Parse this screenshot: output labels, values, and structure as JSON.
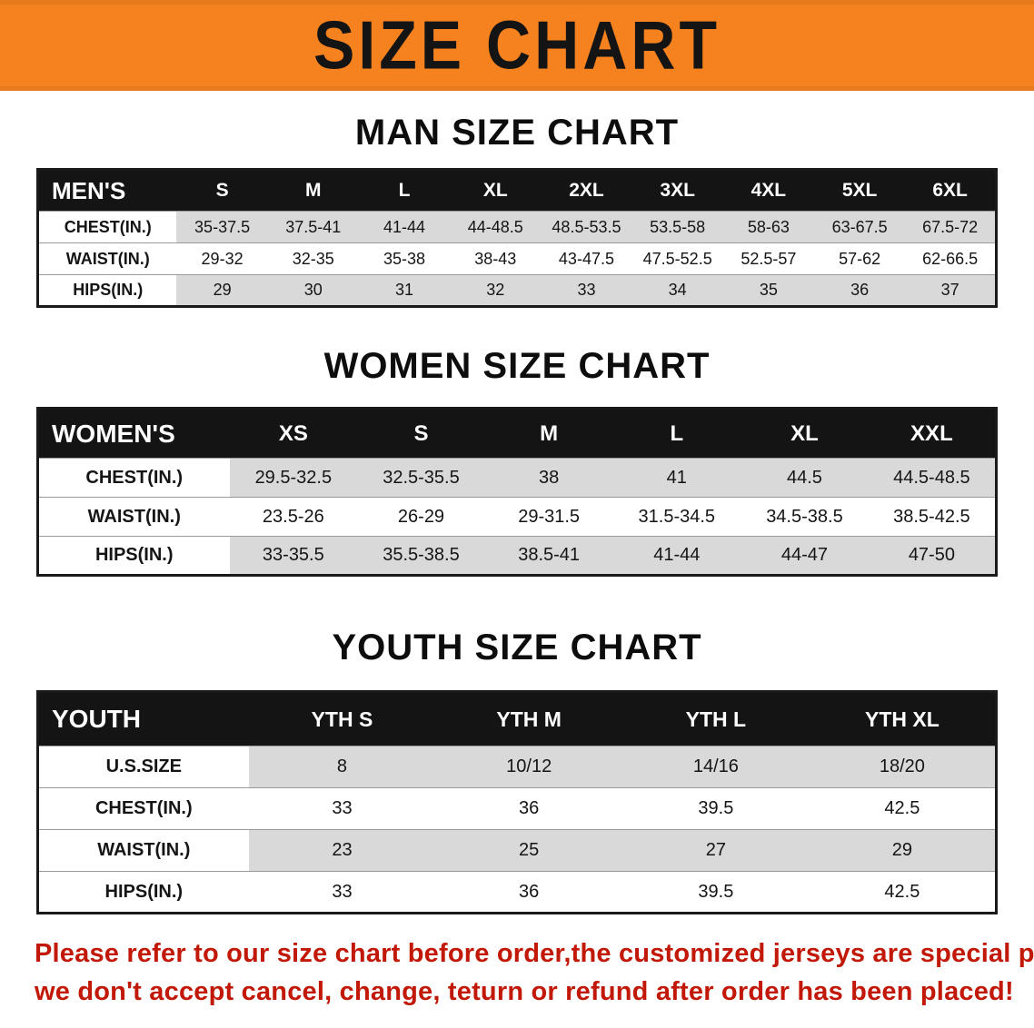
{
  "banner": {
    "title": "SIZE CHART"
  },
  "colors": {
    "banner_bg": "#F5821F",
    "table_header_bg": "#141414",
    "row_alt_bg": "#D9D9D9",
    "disclaimer_text": "#C21807"
  },
  "sections": [
    {
      "id": "men",
      "heading": "MAN SIZE CHART",
      "table": {
        "header": [
          "MEN'S",
          "S",
          "M",
          "L",
          "XL",
          "2XL",
          "3XL",
          "4XL",
          "5XL",
          "6XL"
        ],
        "rows": [
          [
            "CHEST(IN.)",
            "35-37.5",
            "37.5-41",
            "41-44",
            "44-48.5",
            "48.5-53.5",
            "53.5-58",
            "58-63",
            "63-67.5",
            "67.5-72"
          ],
          [
            "WAIST(IN.)",
            "29-32",
            "32-35",
            "35-38",
            "38-43",
            "43-47.5",
            "47.5-52.5",
            "52.5-57",
            "57-62",
            "62-66.5"
          ],
          [
            "HIPS(IN.)",
            "29",
            "30",
            "31",
            "32",
            "33",
            "34",
            "35",
            "36",
            "37"
          ]
        ]
      }
    },
    {
      "id": "women",
      "heading": "WOMEN SIZE CHART",
      "table": {
        "header": [
          "WOMEN'S",
          "XS",
          "S",
          "M",
          "L",
          "XL",
          "XXL"
        ],
        "rows": [
          [
            "CHEST(IN.)",
            "29.5-32.5",
            "32.5-35.5",
            "38",
            "41",
            "44.5",
            "44.5-48.5"
          ],
          [
            "WAIST(IN.)",
            "23.5-26",
            "26-29",
            "29-31.5",
            "31.5-34.5",
            "34.5-38.5",
            "38.5-42.5"
          ],
          [
            "HIPS(IN.)",
            "33-35.5",
            "35.5-38.5",
            "38.5-41",
            "41-44",
            "44-47",
            "47-50"
          ]
        ]
      }
    },
    {
      "id": "youth",
      "heading": "YOUTH SIZE CHART",
      "table": {
        "header": [
          "YOUTH",
          "YTH S",
          "YTH M",
          "YTH L",
          "YTH XL"
        ],
        "rows": [
          [
            "U.S.SIZE",
            "8",
            "10/12",
            "14/16",
            "18/20"
          ],
          [
            "CHEST(IN.)",
            "33",
            "36",
            "39.5",
            "42.5"
          ],
          [
            "WAIST(IN.)",
            "23",
            "25",
            "27",
            "29"
          ],
          [
            "HIPS(IN.)",
            "33",
            "36",
            "39.5",
            "42.5"
          ]
        ]
      }
    }
  ],
  "disclaimer": {
    "line1": "Please refer to our size chart before order,the customized jerseys are special products,",
    "line2": "we don't accept cancel, change, teturn or refund after order has been placed!"
  }
}
